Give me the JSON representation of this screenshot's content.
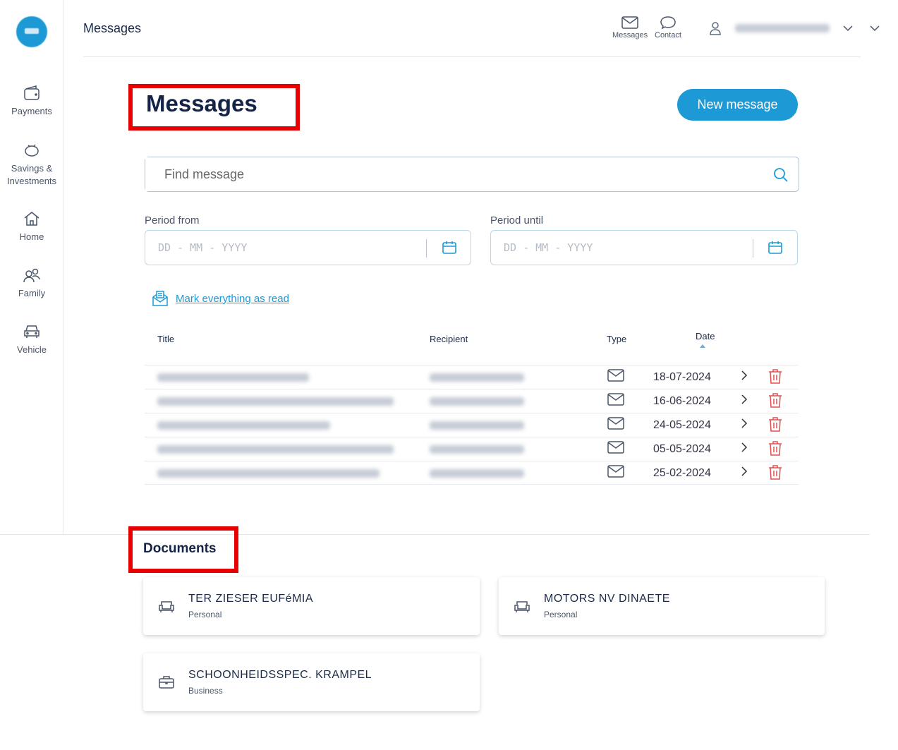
{
  "sidebar": {
    "items": [
      {
        "label": "Payments",
        "icon": "wallet-icon"
      },
      {
        "label": "Savings & Investments",
        "icon": "piggy-bank-icon"
      },
      {
        "label": "Home",
        "icon": "house-icon"
      },
      {
        "label": "Family",
        "icon": "people-icon"
      },
      {
        "label": "Vehicle",
        "icon": "car-icon"
      }
    ]
  },
  "topbar": {
    "title": "Messages",
    "messages_label": "Messages",
    "contact_label": "Contact"
  },
  "page": {
    "title": "Messages",
    "new_message": "New message",
    "search_placeholder": "Find message",
    "period_from": "Period from",
    "period_until": "Period until",
    "date_placeholder": "DD - MM - YYYY",
    "mark_all_read": "Mark everything as read"
  },
  "table": {
    "headers": {
      "title": "Title",
      "recipient": "Recipient",
      "type": "Type",
      "date": "Date"
    },
    "rows": [
      {
        "date": "18-07-2024"
      },
      {
        "date": "16-06-2024"
      },
      {
        "date": "24-05-2024"
      },
      {
        "date": "05-05-2024"
      },
      {
        "date": "25-02-2024"
      }
    ]
  },
  "documents": {
    "title": "Documents",
    "cards": [
      {
        "name": "TER ZIESER EUFéMIA",
        "type": "Personal",
        "icon": "sofa-icon"
      },
      {
        "name": "MOTORS NV DINAETE",
        "type": "Personal",
        "icon": "sofa-icon"
      },
      {
        "name": "SCHOONHEIDSSPEC. KRAMPEL",
        "type": "Business",
        "icon": "briefcase-icon"
      }
    ]
  },
  "colors": {
    "accent": "#1d9ad6",
    "highlight": "#e60000",
    "delete": "#e05050"
  }
}
